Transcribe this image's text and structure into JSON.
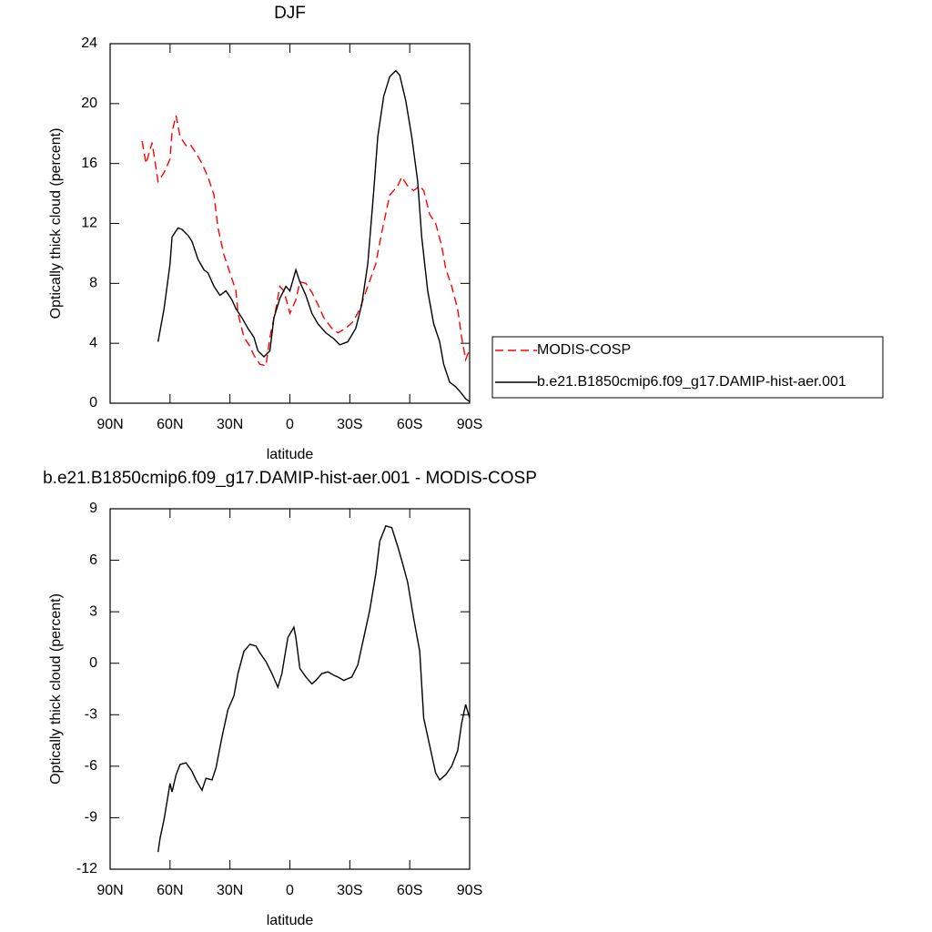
{
  "chart_data": [
    {
      "type": "line",
      "title": "DJF",
      "xlabel": "latitude",
      "ylabel": "Optically thick cloud (percent)",
      "xlim": [
        90,
        -90
      ],
      "xticks": [
        {
          "value": 90,
          "label": "90N"
        },
        {
          "value": 60,
          "label": "60N"
        },
        {
          "value": 30,
          "label": "30N"
        },
        0,
        {
          "value": -30,
          "label": "30S"
        },
        {
          "value": -60,
          "label": "60S"
        },
        {
          "value": -90,
          "label": "90S"
        }
      ],
      "ylim": [
        0,
        24
      ],
      "yticks": [
        0,
        4,
        8,
        12,
        16,
        20,
        24
      ],
      "legend": "right",
      "series": [
        {
          "name": "MODIS-COSP",
          "color": "#ff0000",
          "linestyle": "dashed",
          "x": [
            74,
            72,
            69,
            66,
            63,
            60,
            59,
            57,
            55,
            52,
            50,
            47,
            44,
            41,
            38,
            36,
            33,
            30,
            27,
            26,
            23,
            20,
            18,
            15,
            12,
            10,
            7,
            5,
            3,
            0,
            -3,
            -5,
            -8,
            -11,
            -14,
            -17,
            -21,
            -24,
            -28,
            -32,
            -35,
            -39,
            -43,
            -46,
            -50,
            -54,
            -56,
            -59,
            -62,
            -65,
            -67,
            -70,
            -73,
            -76,
            -78,
            -81,
            -84,
            -86,
            -88,
            -90
          ],
          "values": [
            17.5,
            16.0,
            17.4,
            14.8,
            15.4,
            16.3,
            18.1,
            19.2,
            17.8,
            17.2,
            17.3,
            16.7,
            16.0,
            15.1,
            13.9,
            11.7,
            9.9,
            8.7,
            7.5,
            6.0,
            4.4,
            3.8,
            3.2,
            2.6,
            2.5,
            4.4,
            6.3,
            7.8,
            7.5,
            6.0,
            6.9,
            8.1,
            8.0,
            7.4,
            6.6,
            5.7,
            5.0,
            4.7,
            5.0,
            5.5,
            6.3,
            7.8,
            9.3,
            11.4,
            13.9,
            14.5,
            15.1,
            14.5,
            14.2,
            14.5,
            14.2,
            12.6,
            12.0,
            10.5,
            9.0,
            7.8,
            6.3,
            4.4,
            2.9,
            3.6
          ]
        },
        {
          "name": "b.e21.B1850cmip6.f09_g17.DAMIP-hist-aer.001",
          "color": "#000000",
          "linestyle": "solid",
          "x": [
            66,
            63,
            60,
            59,
            56,
            54,
            51,
            49,
            46,
            43,
            41,
            38,
            35,
            32,
            29,
            27,
            24,
            21,
            18,
            16,
            13,
            10,
            8,
            5,
            2,
            0,
            -3,
            -5,
            -8,
            -11,
            -14,
            -18,
            -22,
            -25,
            -29,
            -33,
            -36,
            -39,
            -42,
            -44,
            -47,
            -50,
            -53,
            -55,
            -58,
            -61,
            -64,
            -66,
            -69,
            -72,
            -75,
            -77,
            -80,
            -83,
            -85,
            -88,
            -90
          ],
          "values": [
            4.1,
            6.3,
            9.3,
            11.1,
            11.7,
            11.6,
            11.2,
            10.8,
            9.6,
            8.9,
            8.7,
            7.8,
            7.2,
            7.5,
            6.9,
            6.3,
            5.7,
            5.0,
            4.4,
            3.5,
            3.1,
            3.5,
            5.7,
            7.0,
            7.8,
            7.5,
            8.9,
            8.1,
            7.2,
            6.0,
            5.3,
            4.7,
            4.3,
            3.9,
            4.1,
            5.0,
            6.6,
            9.3,
            14.2,
            17.8,
            20.5,
            21.8,
            22.2,
            21.9,
            20.2,
            17.8,
            14.8,
            11.1,
            7.5,
            5.3,
            4.1,
            2.6,
            1.4,
            1.1,
            0.8,
            0.3,
            0.1
          ]
        }
      ]
    },
    {
      "type": "line",
      "title": "b.e21.B1850cmip6.f09_g17.DAMIP-hist-aer.001 - MODIS-COSP",
      "xlabel": "latitude",
      "ylabel": "Optically thick cloud (percent)",
      "xlim": [
        90,
        -90
      ],
      "xticks": [
        {
          "value": 90,
          "label": "90N"
        },
        {
          "value": 60,
          "label": "60N"
        },
        {
          "value": 30,
          "label": "30N"
        },
        0,
        {
          "value": -30,
          "label": "30S"
        },
        {
          "value": -60,
          "label": "60S"
        },
        {
          "value": -90,
          "label": "90S"
        }
      ],
      "ylim": [
        -12,
        9
      ],
      "yticks": [
        -12,
        -9,
        -6,
        -3,
        0,
        3,
        6,
        9
      ],
      "series": [
        {
          "color": "#000000",
          "linestyle": "solid",
          "x": [
            66,
            65,
            63,
            60,
            59,
            57,
            55,
            52,
            49,
            47,
            44,
            42,
            39,
            37,
            34,
            31,
            28,
            26,
            23,
            20,
            17,
            15,
            12,
            9,
            6,
            4,
            1,
            -2,
            -3,
            -5,
            -8,
            -11,
            -13,
            -16,
            -19,
            -22,
            -24,
            -27,
            -31,
            -34,
            -37,
            -40,
            -43,
            -45,
            -48,
            -51,
            -54,
            -56,
            -59,
            -62,
            -65,
            -67,
            -70,
            -73,
            -75,
            -78,
            -81,
            -84,
            -86,
            -88,
            -90
          ],
          "values": [
            -11.0,
            -10.2,
            -9.1,
            -7.0,
            -7.5,
            -6.5,
            -5.9,
            -5.8,
            -6.3,
            -6.8,
            -7.4,
            -6.7,
            -6.8,
            -6.1,
            -4.3,
            -2.7,
            -1.9,
            -0.6,
            0.7,
            1.1,
            1.0,
            0.6,
            0.1,
            -0.6,
            -1.4,
            -0.6,
            1.5,
            2.1,
            1.5,
            -0.3,
            -0.8,
            -1.2,
            -1.0,
            -0.6,
            -0.5,
            -0.7,
            -0.8,
            -1.0,
            -0.8,
            -0.1,
            1.5,
            3.1,
            5.2,
            7.1,
            8.0,
            7.9,
            6.8,
            6.0,
            4.7,
            2.6,
            0.7,
            -3.2,
            -4.8,
            -6.4,
            -6.8,
            -6.5,
            -6.0,
            -5.1,
            -3.5,
            -2.4,
            -3.2
          ]
        }
      ]
    }
  ]
}
